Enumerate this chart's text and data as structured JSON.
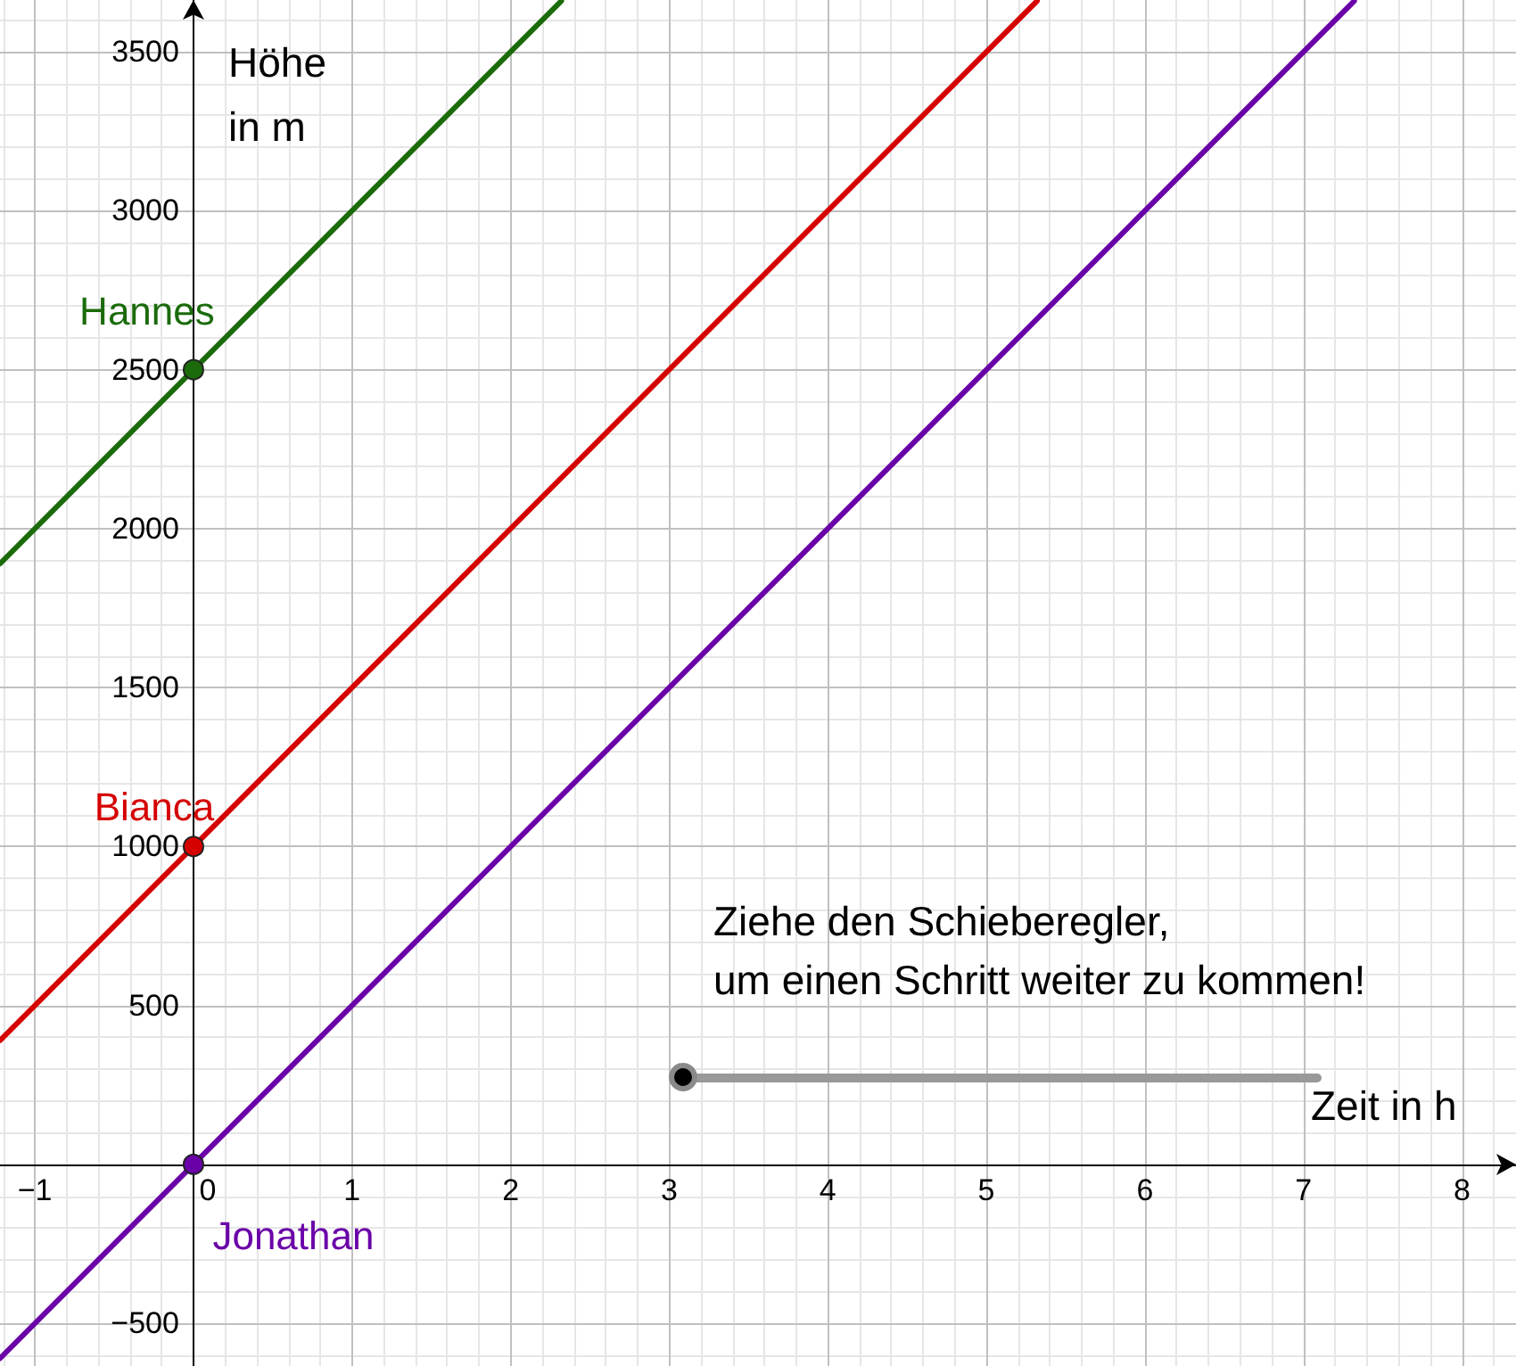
{
  "chart_data": {
    "type": "line",
    "xlabel": "Zeit in h",
    "ylabel": "Höhe\nin m",
    "annotations": [
      "Ziehe den Schieberegler,\num einen Schritt weiter zu kommen!"
    ],
    "xlim": [
      -1.22,
      8.34
    ],
    "ylim": [
      -634,
      3663
    ],
    "xticks": [
      {
        "value": -1,
        "label": "−1"
      },
      0,
      1,
      2,
      3,
      4,
      5,
      6,
      7,
      8
    ],
    "yticks": [
      {
        "value": -500,
        "label": "−500"
      },
      {
        "value": 0,
        "label": null
      },
      500,
      1000,
      1500,
      2000,
      2500,
      3000,
      3500
    ],
    "grid": true,
    "series": [
      {
        "color": "#1b6b0b",
        "marker": "none",
        "x": [
          -1.22,
          2.32
        ],
        "values": [
          1890,
          3660
        ]
      },
      {
        "color": "#d50000",
        "marker": "none",
        "x": [
          -1.22,
          5.32
        ],
        "values": [
          390,
          3660
        ]
      },
      {
        "color": "#6a00a8",
        "marker": "none",
        "x": [
          -1.22,
          7.32
        ],
        "values": [
          -610,
          3660
        ]
      },
      {
        "type": "scatter",
        "name": "Hannes",
        "color": "#1b6b0b",
        "marker": "circle",
        "x": [
          0
        ],
        "values": [
          2500
        ]
      },
      {
        "type": "scatter",
        "name": "Bianca",
        "color": "#d50000",
        "marker": "circle",
        "x": [
          0
        ],
        "values": [
          1000
        ]
      },
      {
        "type": "scatter",
        "name": "Jonathan",
        "color": "#6a00a8",
        "marker": "circle",
        "x": [
          0
        ],
        "values": [
          0
        ]
      }
    ]
  }
}
